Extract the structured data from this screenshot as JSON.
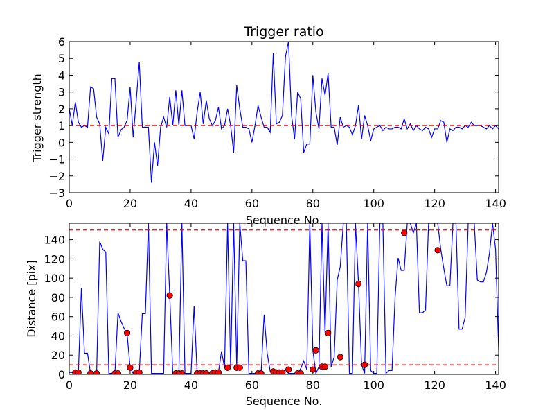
{
  "colors": {
    "line": "#0000ff",
    "threshold": "#ff0000",
    "marker_fill": "#ff0000",
    "marker_edge": "#000000",
    "axes": "#000000",
    "background": "#ffffff"
  },
  "chart_data": [
    {
      "type": "line",
      "title": "Trigger ratio",
      "xlabel": "Sequence No.",
      "ylabel": "Trigger strength",
      "xlim": [
        0,
        141
      ],
      "ylim": [
        -3,
        6
      ],
      "xticks": [
        0,
        20,
        40,
        60,
        80,
        100,
        120,
        140
      ],
      "yticks": [
        -3,
        -2,
        -1,
        0,
        1,
        2,
        3,
        4,
        5,
        6
      ],
      "grid": false,
      "series": [
        {
          "style": "solid",
          "x": [
            0,
            1,
            2,
            3,
            4,
            5,
            6,
            7,
            8,
            9,
            10,
            11,
            12,
            13,
            14,
            15,
            16,
            17,
            18,
            19,
            20,
            21,
            22,
            23,
            24,
            25,
            26,
            27,
            28,
            29,
            30,
            31,
            32,
            33,
            34,
            35,
            36,
            37,
            38,
            39,
            40,
            41,
            42,
            43,
            44,
            45,
            46,
            47,
            48,
            49,
            50,
            51,
            52,
            53,
            54,
            55,
            56,
            57,
            58,
            59,
            60,
            61,
            62,
            63,
            64,
            65,
            66,
            67,
            68,
            69,
            70,
            71,
            72,
            73,
            74,
            75,
            76,
            77,
            78,
            79,
            80,
            81,
            82,
            83,
            84,
            85,
            86,
            87,
            88,
            89,
            90,
            91,
            92,
            93,
            94,
            95,
            96,
            97,
            98,
            99,
            100,
            101,
            102,
            103,
            104,
            105,
            106,
            107,
            108,
            109,
            110,
            111,
            112,
            113,
            114,
            115,
            116,
            117,
            118,
            119,
            120,
            121,
            122,
            123,
            124,
            125,
            126,
            127,
            128,
            129,
            130,
            131,
            132,
            133,
            134,
            135,
            136,
            137,
            138,
            139,
            140,
            141
          ],
          "y": [
            2.0,
            1.0,
            2.4,
            1.2,
            0.9,
            1.0,
            0.9,
            3.3,
            3.2,
            1.5,
            1.1,
            -1.1,
            0.9,
            0.5,
            3.8,
            3.8,
            0.3,
            0.75,
            0.9,
            1.3,
            3.3,
            0.3,
            2.5,
            4.8,
            0.9,
            0.9,
            0.9,
            -2.4,
            0.0,
            -1.4,
            0.9,
            1.5,
            0.9,
            2.7,
            1.0,
            3.1,
            1.0,
            3.1,
            1.0,
            1.0,
            1.0,
            0.2,
            1.8,
            3.0,
            1.1,
            2.5,
            1.4,
            1.0,
            1.3,
            2.1,
            0.8,
            1.0,
            2.0,
            1.0,
            -0.6,
            3.4,
            2.0,
            0.9,
            0.9,
            0.8,
            0.0,
            1.0,
            2.2,
            1.5,
            0.9,
            0.9,
            0.6,
            5.3,
            1.1,
            1.2,
            1.6,
            5.1,
            6.0,
            1.6,
            0.2,
            3.0,
            2.6,
            -0.6,
            -0.1,
            -0.1,
            4.0,
            1.8,
            0.8,
            3.8,
            2.8,
            4.1,
            0.9,
            0.9,
            -0.15,
            1.5,
            0.9,
            1.0,
            0.9,
            0.45,
            1.0,
            2.2,
            0.2,
            1.6,
            1.0,
            0.1,
            0.8,
            0.9,
            1.0,
            0.7,
            0.9,
            0.8,
            0.8,
            0.9,
            0.9,
            0.8,
            1.4,
            0.8,
            1.1,
            0.7,
            1.0,
            0.8,
            0.7,
            0.9,
            0.8,
            0.3,
            0.8,
            0.8,
            1.3,
            1.2,
            0.0,
            0.8,
            0.7,
            0.9,
            0.9,
            0.8,
            1.0,
            0.9,
            1.2,
            1.0,
            1.0,
            1.0,
            0.9,
            0.8,
            1.0,
            0.8,
            1.0,
            0.8
          ]
        },
        {
          "style": "dashed",
          "x": [
            0,
            141
          ],
          "y": [
            1,
            1
          ]
        }
      ]
    },
    {
      "type": "line",
      "title": "",
      "xlabel": "Sequence No.",
      "ylabel": "Distance [pix]",
      "xlim": [
        0,
        141
      ],
      "ylim": [
        0,
        157
      ],
      "xticks": [
        0,
        20,
        40,
        60,
        80,
        100,
        120,
        140
      ],
      "yticks": [
        0,
        20,
        40,
        60,
        80,
        100,
        120,
        140
      ],
      "grid": false,
      "series": [
        {
          "style": "solid",
          "x": [
            0,
            1,
            2,
            3,
            4,
            5,
            6,
            7,
            8,
            9,
            10,
            11,
            12,
            13,
            14,
            15,
            16,
            17,
            18,
            19,
            20,
            21,
            22,
            23,
            24,
            25,
            26,
            27,
            28,
            29,
            30,
            31,
            32,
            33,
            34,
            35,
            36,
            37,
            38,
            39,
            40,
            41,
            42,
            43,
            44,
            45,
            46,
            47,
            48,
            49,
            50,
            51,
            52,
            53,
            54,
            55,
            56,
            57,
            58,
            59,
            60,
            61,
            62,
            63,
            64,
            65,
            66,
            67,
            68,
            69,
            70,
            71,
            72,
            73,
            74,
            75,
            76,
            77,
            78,
            79,
            80,
            81,
            82,
            83,
            84,
            85,
            86,
            87,
            88,
            89,
            90,
            91,
            92,
            93,
            94,
            95,
            96,
            97,
            98,
            99,
            100,
            101,
            102,
            103,
            104,
            105,
            106,
            107,
            108,
            109,
            110,
            111,
            112,
            113,
            114,
            115,
            116,
            117,
            118,
            119,
            120,
            121,
            122,
            123,
            124,
            125,
            126,
            127,
            128,
            129,
            130,
            131,
            132,
            133,
            134,
            135,
            136,
            137,
            138,
            139,
            140,
            141
          ],
          "y": [
            2,
            2,
            2,
            2,
            90,
            22,
            22,
            1,
            1,
            1,
            138,
            130,
            127,
            1,
            1,
            1,
            64,
            55,
            48,
            42,
            7,
            1,
            1,
            2,
            63,
            63,
            157,
            1,
            1,
            1,
            1,
            1,
            157,
            82,
            1,
            1,
            1,
            157,
            1,
            1,
            1,
            71,
            1,
            1,
            1,
            1,
            1,
            1,
            2,
            2,
            24,
            7,
            157,
            7,
            157,
            7,
            157,
            118,
            118,
            1,
            1,
            1,
            1,
            1,
            62,
            22,
            3,
            3,
            2,
            2,
            2,
            5,
            1,
            1,
            1,
            1,
            6,
            14,
            5,
            157,
            25,
            1,
            8,
            157,
            43,
            157,
            8,
            18,
            98,
            112,
            157,
            157,
            1,
            1,
            157,
            94,
            10,
            1,
            157,
            4,
            1,
            1,
            157,
            157,
            1,
            4,
            4,
            80,
            121,
            108,
            108,
            157,
            157,
            147,
            157,
            64,
            64,
            67,
            157,
            157,
            157,
            157,
            130,
            110,
            92,
            92,
            157,
            157,
            47,
            47,
            59,
            157,
            157,
            157,
            98,
            96,
            96,
            106,
            126,
            157,
            130,
            25
          ],
          "markers": false
        },
        {
          "style": "markers",
          "x": [
            2,
            3,
            7,
            9,
            15,
            16,
            19,
            20,
            22,
            23,
            33,
            35,
            36,
            37,
            42,
            43,
            44,
            45,
            47,
            48,
            49,
            52,
            55,
            56,
            62,
            63,
            67,
            68,
            69,
            70,
            72,
            75,
            76,
            80,
            81,
            83,
            84,
            85,
            89,
            95,
            97,
            110,
            121
          ],
          "y": [
            2,
            2,
            1,
            1,
            1,
            1,
            43,
            7,
            2,
            2,
            82,
            1,
            1,
            1,
            1,
            1,
            1,
            1,
            1,
            2,
            2,
            7,
            7,
            7,
            1,
            1,
            3,
            2,
            2,
            2,
            5,
            1,
            1,
            5,
            25,
            8,
            8,
            43,
            18,
            94,
            10,
            147,
            129
          ]
        },
        {
          "style": "dashed",
          "x": [
            0,
            141
          ],
          "y": [
            10,
            10
          ]
        },
        {
          "style": "dashed",
          "x": [
            0,
            141
          ],
          "y": [
            150,
            150
          ]
        }
      ]
    }
  ]
}
